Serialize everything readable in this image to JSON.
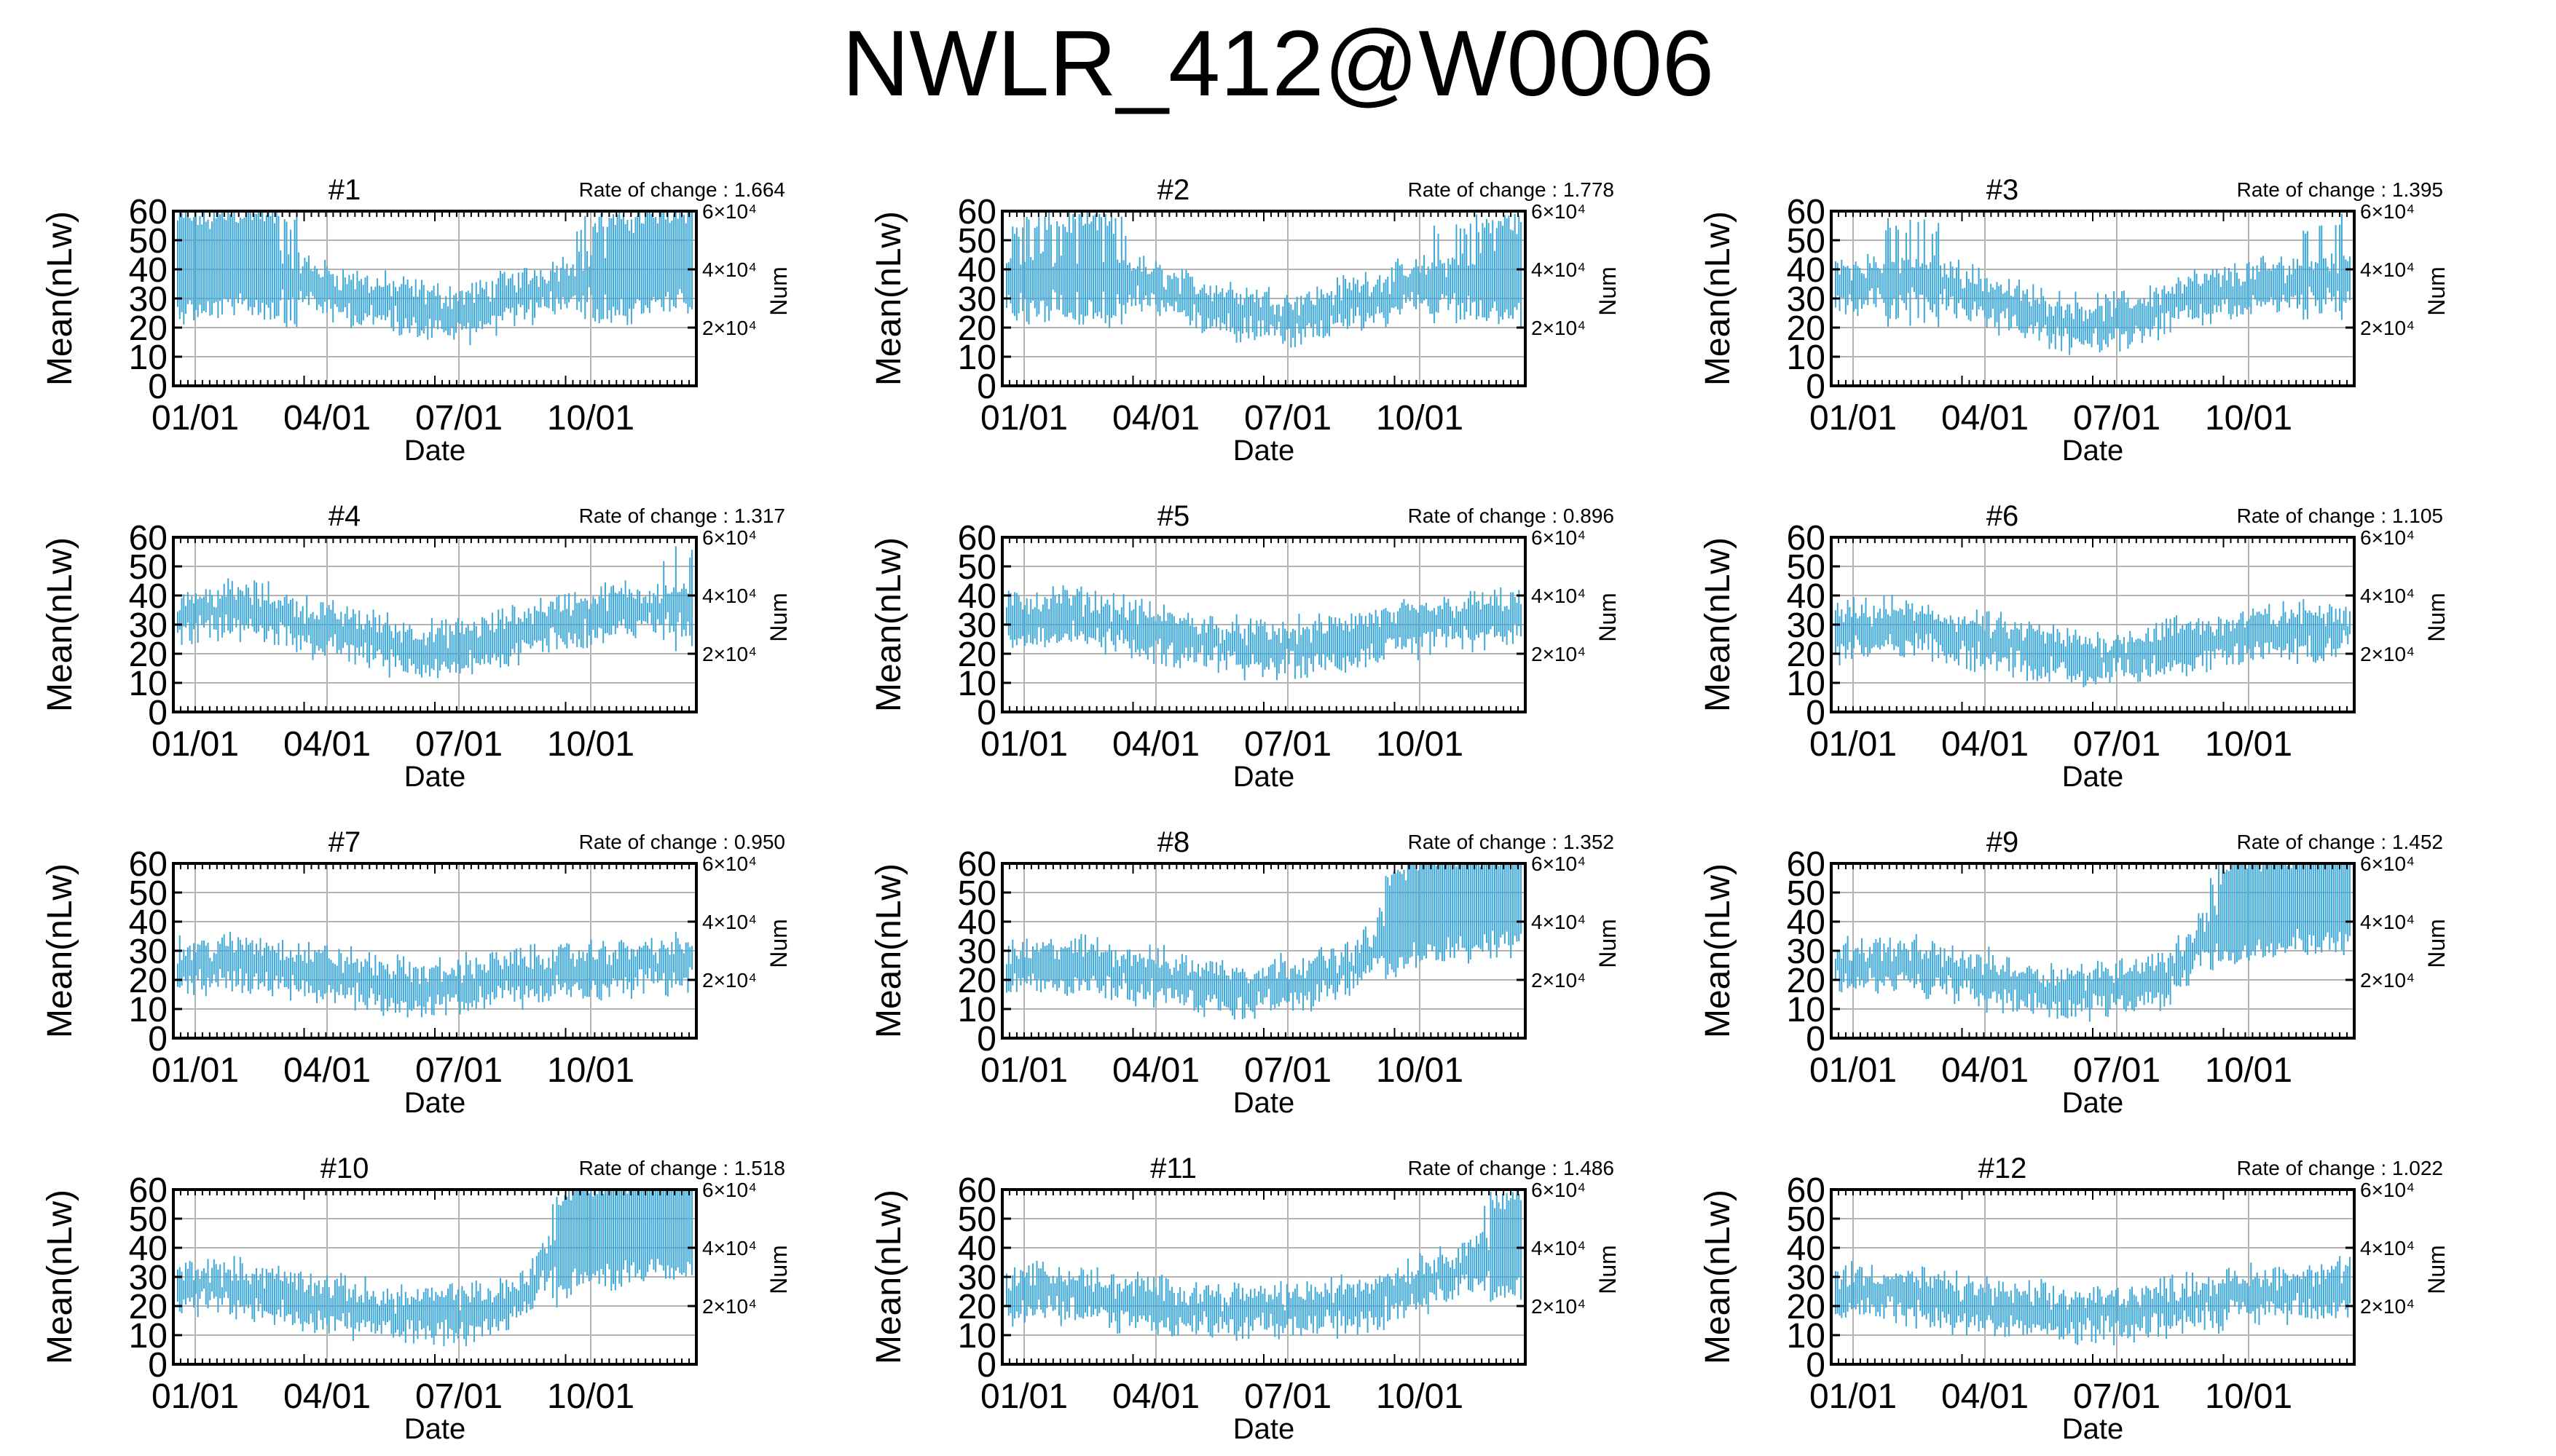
{
  "page_title": "NWLR_412@W0006",
  "colors": {
    "series": "#3ea8d8",
    "grid": "#b4b4b4",
    "axis": "#000000",
    "text": "#000000"
  },
  "chart_data": [
    {
      "type": "line",
      "title": "#1",
      "annotation": "Rate of change : 1.664",
      "xlabel": "Date",
      "ylabel": "Mean(nLw)",
      "y2label": "Num",
      "x_ticks": [
        "01/01",
        "04/01",
        "07/01",
        "10/01"
      ],
      "y_ticks": [
        "0",
        "10",
        "20",
        "30",
        "40",
        "50",
        "60"
      ],
      "y2_ticks": [
        "2×10⁴",
        "4×10⁴",
        "6×10⁴"
      ],
      "ylim": [
        0,
        60
      ],
      "grid": true,
      "series": [
        {
          "values": [
            41,
            42,
            41,
            43,
            44,
            43,
            41,
            38,
            35,
            33,
            31,
            30,
            29,
            28,
            27,
            26,
            25,
            25,
            26,
            28,
            30,
            31,
            33,
            35,
            37,
            39,
            40,
            41,
            42,
            43,
            44,
            45
          ]
        }
      ]
    },
    {
      "type": "line",
      "title": "#2",
      "annotation": "Rate of change : 1.778",
      "xlabel": "Date",
      "ylabel": "Mean(nLw)",
      "y2label": "Num",
      "x_ticks": [
        "01/01",
        "04/01",
        "07/01",
        "10/01"
      ],
      "y_ticks": [
        "0",
        "10",
        "20",
        "30",
        "40",
        "50",
        "60"
      ],
      "y2_ticks": [
        "2×10⁴",
        "4×10⁴",
        "6×10⁴"
      ],
      "ylim": [
        0,
        60
      ],
      "grid": true,
      "series": [
        {
          "values": [
            37,
            38,
            39,
            39,
            40,
            40,
            39,
            37,
            35,
            33,
            31,
            29,
            28,
            27,
            26,
            25,
            24,
            23,
            24,
            25,
            27,
            29,
            30,
            31,
            33,
            34,
            36,
            37,
            38,
            39,
            40,
            41
          ]
        }
      ]
    },
    {
      "type": "line",
      "title": "#3",
      "annotation": "Rate of change : 1.395",
      "xlabel": "Date",
      "ylabel": "Mean(nLw)",
      "y2label": "Num",
      "x_ticks": [
        "01/01",
        "04/01",
        "07/01",
        "10/01"
      ],
      "y_ticks": [
        "0",
        "10",
        "20",
        "30",
        "40",
        "50",
        "60"
      ],
      "y2_ticks": [
        "2×10⁴",
        "4×10⁴",
        "6×10⁴"
      ],
      "ylim": [
        0,
        60
      ],
      "grid": true,
      "series": [
        {
          "values": [
            34,
            35,
            36,
            36,
            37,
            37,
            36,
            34,
            32,
            30,
            28,
            26,
            24,
            23,
            22,
            21,
            21,
            22,
            23,
            25,
            27,
            29,
            30,
            31,
            32,
            33,
            34,
            35,
            36,
            37,
            38,
            38
          ]
        }
      ]
    },
    {
      "type": "line",
      "title": "#4",
      "annotation": "Rate of change : 1.317",
      "xlabel": "Date",
      "ylabel": "Mean(nLw)",
      "y2label": "Num",
      "x_ticks": [
        "01/01",
        "04/01",
        "07/01",
        "10/01"
      ],
      "y_ticks": [
        "0",
        "10",
        "20",
        "30",
        "40",
        "50",
        "60"
      ],
      "y2_ticks": [
        "2×10⁴",
        "4×10⁴",
        "6×10⁴"
      ],
      "ylim": [
        0,
        60
      ],
      "grid": true,
      "series": [
        {
          "values": [
            33,
            34,
            34,
            35,
            35,
            34,
            33,
            31,
            29,
            28,
            27,
            26,
            25,
            23,
            22,
            21,
            21,
            22,
            23,
            24,
            26,
            28,
            30,
            31,
            32,
            33,
            34,
            35,
            35,
            36,
            36,
            37
          ]
        }
      ]
    },
    {
      "type": "line",
      "title": "#5",
      "annotation": "Rate of change : 0.896",
      "xlabel": "Date",
      "ylabel": "Mean(nLw)",
      "y2label": "Num",
      "x_ticks": [
        "01/01",
        "04/01",
        "07/01",
        "10/01"
      ],
      "y_ticks": [
        "0",
        "10",
        "20",
        "30",
        "40",
        "50",
        "60"
      ],
      "y2_ticks": [
        "2×10⁴",
        "4×10⁴",
        "6×10⁴"
      ],
      "ylim": [
        0,
        60
      ],
      "grid": true,
      "series": [
        {
          "values": [
            31,
            32,
            32,
            33,
            33,
            32,
            31,
            30,
            28,
            27,
            26,
            25,
            24,
            23,
            22,
            22,
            21,
            22,
            22,
            23,
            24,
            25,
            26,
            27,
            28,
            29,
            30,
            31,
            31,
            32,
            32,
            33
          ]
        }
      ]
    },
    {
      "type": "line",
      "title": "#6",
      "annotation": "Rate of change : 1.105",
      "xlabel": "Date",
      "ylabel": "Mean(nLw)",
      "y2label": "Num",
      "x_ticks": [
        "01/01",
        "04/01",
        "07/01",
        "10/01"
      ],
      "y_ticks": [
        "0",
        "10",
        "20",
        "30",
        "40",
        "50",
        "60"
      ],
      "y2_ticks": [
        "2×10⁴",
        "4×10⁴",
        "6×10⁴"
      ],
      "ylim": [
        0,
        60
      ],
      "grid": true,
      "series": [
        {
          "values": [
            27,
            28,
            28,
            29,
            29,
            28,
            27,
            26,
            25,
            24,
            23,
            22,
            21,
            20,
            19,
            18,
            18,
            19,
            20,
            21,
            22,
            23,
            24,
            24,
            25,
            26,
            27,
            27,
            28,
            28,
            29,
            29
          ]
        }
      ]
    },
    {
      "type": "line",
      "title": "#7",
      "annotation": "Rate of change : 0.950",
      "xlabel": "Date",
      "ylabel": "Mean(nLw)",
      "y2label": "Num",
      "x_ticks": [
        "01/01",
        "04/01",
        "07/01",
        "10/01"
      ],
      "y_ticks": [
        "0",
        "10",
        "20",
        "30",
        "40",
        "50",
        "60"
      ],
      "y2_ticks": [
        "2×10⁴",
        "4×10⁴",
        "6×10⁴"
      ],
      "ylim": [
        0,
        60
      ],
      "grid": true,
      "series": [
        {
          "values": [
            24,
            25,
            25,
            26,
            26,
            26,
            25,
            24,
            23,
            22,
            21,
            20,
            19,
            18,
            17,
            17,
            17,
            18,
            19,
            20,
            21,
            21,
            22,
            22,
            23,
            23,
            24,
            24,
            25,
            25,
            25,
            26
          ]
        }
      ]
    },
    {
      "type": "line",
      "title": "#8",
      "annotation": "Rate of change : 1.352",
      "xlabel": "Date",
      "ylabel": "Mean(nLw)",
      "y2label": "Num",
      "x_ticks": [
        "01/01",
        "04/01",
        "07/01",
        "10/01"
      ],
      "y_ticks": [
        "0",
        "10",
        "20",
        "30",
        "40",
        "50",
        "60"
      ],
      "y2_ticks": [
        "2×10⁴",
        "4×10⁴",
        "6×10⁴"
      ],
      "ylim": [
        0,
        60
      ],
      "grid": true,
      "series": [
        {
          "values": [
            23,
            24,
            24,
            25,
            25,
            25,
            24,
            23,
            22,
            21,
            20,
            19,
            18,
            18,
            17,
            17,
            18,
            19,
            20,
            21,
            22,
            24,
            30,
            38,
            42,
            45,
            46,
            47,
            47,
            48,
            48,
            48
          ]
        }
      ]
    },
    {
      "type": "line",
      "title": "#9",
      "annotation": "Rate of change : 1.452",
      "xlabel": "Date",
      "ylabel": "Mean(nLw)",
      "y2label": "Num",
      "x_ticks": [
        "01/01",
        "04/01",
        "07/01",
        "10/01"
      ],
      "y_ticks": [
        "0",
        "10",
        "20",
        "30",
        "40",
        "50",
        "60"
      ],
      "y2_ticks": [
        "2×10⁴",
        "4×10⁴",
        "6×10⁴"
      ],
      "ylim": [
        0,
        60
      ],
      "grid": true,
      "series": [
        {
          "values": [
            24,
            25,
            25,
            25,
            25,
            24,
            23,
            22,
            21,
            20,
            19,
            18,
            17,
            16,
            16,
            16,
            17,
            18,
            19,
            20,
            21,
            26,
            34,
            40,
            44,
            46,
            47,
            47,
            48,
            48,
            48,
            48
          ]
        }
      ]
    },
    {
      "type": "line",
      "title": "#10",
      "annotation": "Rate of change : 1.518",
      "xlabel": "Date",
      "ylabel": "Mean(nLw)",
      "y2label": "Num",
      "x_ticks": [
        "01/01",
        "04/01",
        "07/01",
        "10/01"
      ],
      "y_ticks": [
        "0",
        "10",
        "20",
        "30",
        "40",
        "50",
        "60"
      ],
      "y2_ticks": [
        "2×10⁴",
        "4×10⁴",
        "6×10⁴"
      ],
      "ylim": [
        0,
        60
      ],
      "grid": true,
      "series": [
        {
          "values": [
            26,
            27,
            27,
            26,
            26,
            25,
            24,
            23,
            22,
            21,
            20,
            19,
            18,
            17,
            17,
            17,
            17,
            18,
            18,
            19,
            20,
            24,
            34,
            40,
            44,
            46,
            47,
            47,
            48,
            48,
            48,
            48
          ]
        }
      ]
    },
    {
      "type": "line",
      "title": "#11",
      "annotation": "Rate of change : 1.486",
      "xlabel": "Date",
      "ylabel": "Mean(nLw)",
      "y2label": "Num",
      "x_ticks": [
        "01/01",
        "04/01",
        "07/01",
        "10/01"
      ],
      "y_ticks": [
        "0",
        "10",
        "20",
        "30",
        "40",
        "50",
        "60"
      ],
      "y2_ticks": [
        "2×10⁴",
        "4×10⁴",
        "6×10⁴"
      ],
      "ylim": [
        0,
        60
      ],
      "grid": true,
      "series": [
        {
          "values": [
            24,
            25,
            25,
            25,
            24,
            23,
            22,
            21,
            21,
            20,
            20,
            19,
            19,
            18,
            18,
            18,
            18,
            18,
            19,
            19,
            20,
            21,
            22,
            24,
            26,
            28,
            30,
            32,
            35,
            38,
            40,
            42
          ]
        }
      ]
    },
    {
      "type": "line",
      "title": "#12",
      "annotation": "Rate of change : 1.022",
      "xlabel": "Date",
      "ylabel": "Mean(nLw)",
      "y2label": "Num",
      "x_ticks": [
        "01/01",
        "04/01",
        "07/01",
        "10/01"
      ],
      "y_ticks": [
        "0",
        "10",
        "20",
        "30",
        "40",
        "50",
        "60"
      ],
      "y2_ticks": [
        "2×10⁴",
        "4×10⁴",
        "6×10⁴"
      ],
      "ylim": [
        0,
        60
      ],
      "grid": true,
      "series": [
        {
          "values": [
            24,
            25,
            25,
            25,
            24,
            23,
            22,
            21,
            20,
            20,
            19,
            18,
            18,
            17,
            17,
            17,
            17,
            18,
            18,
            19,
            20,
            21,
            22,
            22,
            23,
            24,
            24,
            25,
            25,
            26,
            26,
            27
          ]
        }
      ]
    }
  ]
}
